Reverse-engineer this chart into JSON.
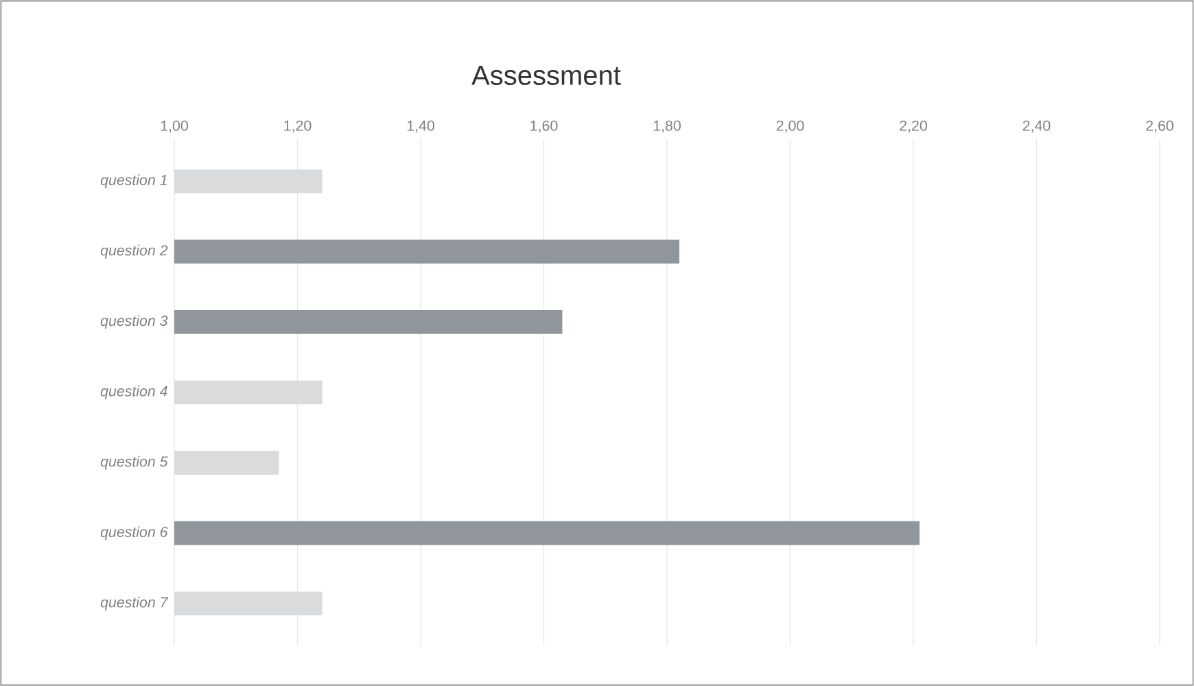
{
  "chart_data": {
    "type": "bar",
    "orientation": "horizontal",
    "title": "Assessment",
    "categories": [
      "question 1",
      "question 2",
      "question 3",
      "question 4",
      "question 5",
      "question 6",
      "question 7"
    ],
    "values": [
      1.24,
      1.82,
      1.63,
      1.24,
      1.17,
      2.21,
      1.24
    ],
    "colors": [
      "#d9dbdd",
      "#90969b",
      "#90969b",
      "#d9dbdd",
      "#d9dbdd",
      "#90969b",
      "#d9dbdd"
    ],
    "xlim": [
      1,
      2.6
    ],
    "xticks": [
      {
        "value": 1,
        "label": "1,00"
      },
      {
        "value": 1.2,
        "label": "1,20"
      },
      {
        "value": 1.4,
        "label": "1,40"
      },
      {
        "value": 1.6,
        "label": "1,60"
      },
      {
        "value": 1.8,
        "label": "1,80"
      },
      {
        "value": 2,
        "label": "2,00"
      },
      {
        "value": 2.2,
        "label": "2,20"
      },
      {
        "value": 2.4,
        "label": "2,40"
      },
      {
        "value": 2.6,
        "label": "2,60"
      }
    ],
    "grid": "x"
  }
}
